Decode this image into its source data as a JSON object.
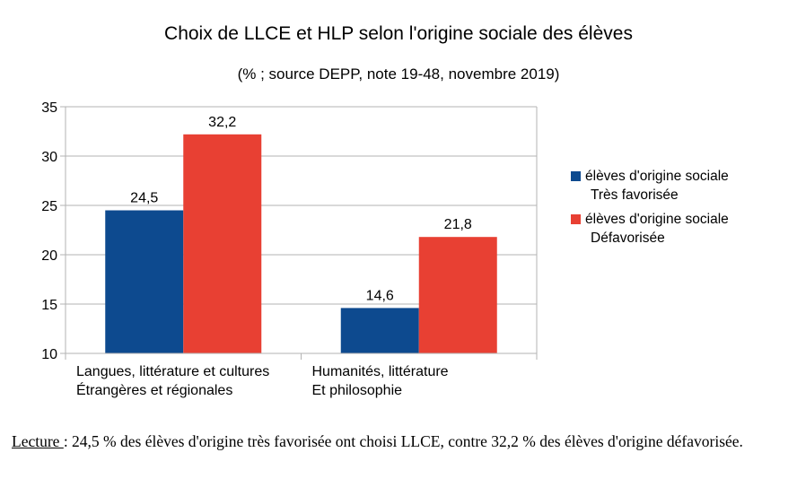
{
  "chart_data": {
    "type": "bar",
    "title": "Choix de LLCE et HLP selon l'origine sociale des élèves",
    "subtitle": "(% ; source DEPP, note 19-48, novembre 2019)",
    "categories": [
      [
        "Langues, littérature et cultures",
        "Étrangères et régionales"
      ],
      [
        "Humanités, littérature",
        "Et philosophie"
      ]
    ],
    "series": [
      {
        "name": [
          "élèves d'origine sociale",
          "Très favorisée"
        ],
        "values": [
          24.5,
          14.6
        ],
        "labels": [
          "24,5",
          "14,6"
        ],
        "color": "#0d4a8f"
      },
      {
        "name": [
          "élèves d'origine sociale",
          "Défavorisée"
        ],
        "values": [
          32.2,
          21.8
        ],
        "labels": [
          "32,2",
          "21,8"
        ],
        "color": "#e84033"
      }
    ],
    "ylim": [
      10,
      35
    ],
    "yticks": [
      "10",
      "15",
      "20",
      "25",
      "30",
      "35"
    ],
    "grid": true,
    "legend_position": "right"
  },
  "lecture": {
    "label": "Lecture ",
    "text": ": 24,5 % des élèves d'origine très favorisée ont choisi LLCE, contre 32,2 % des élèves d'origine défavorisée."
  }
}
